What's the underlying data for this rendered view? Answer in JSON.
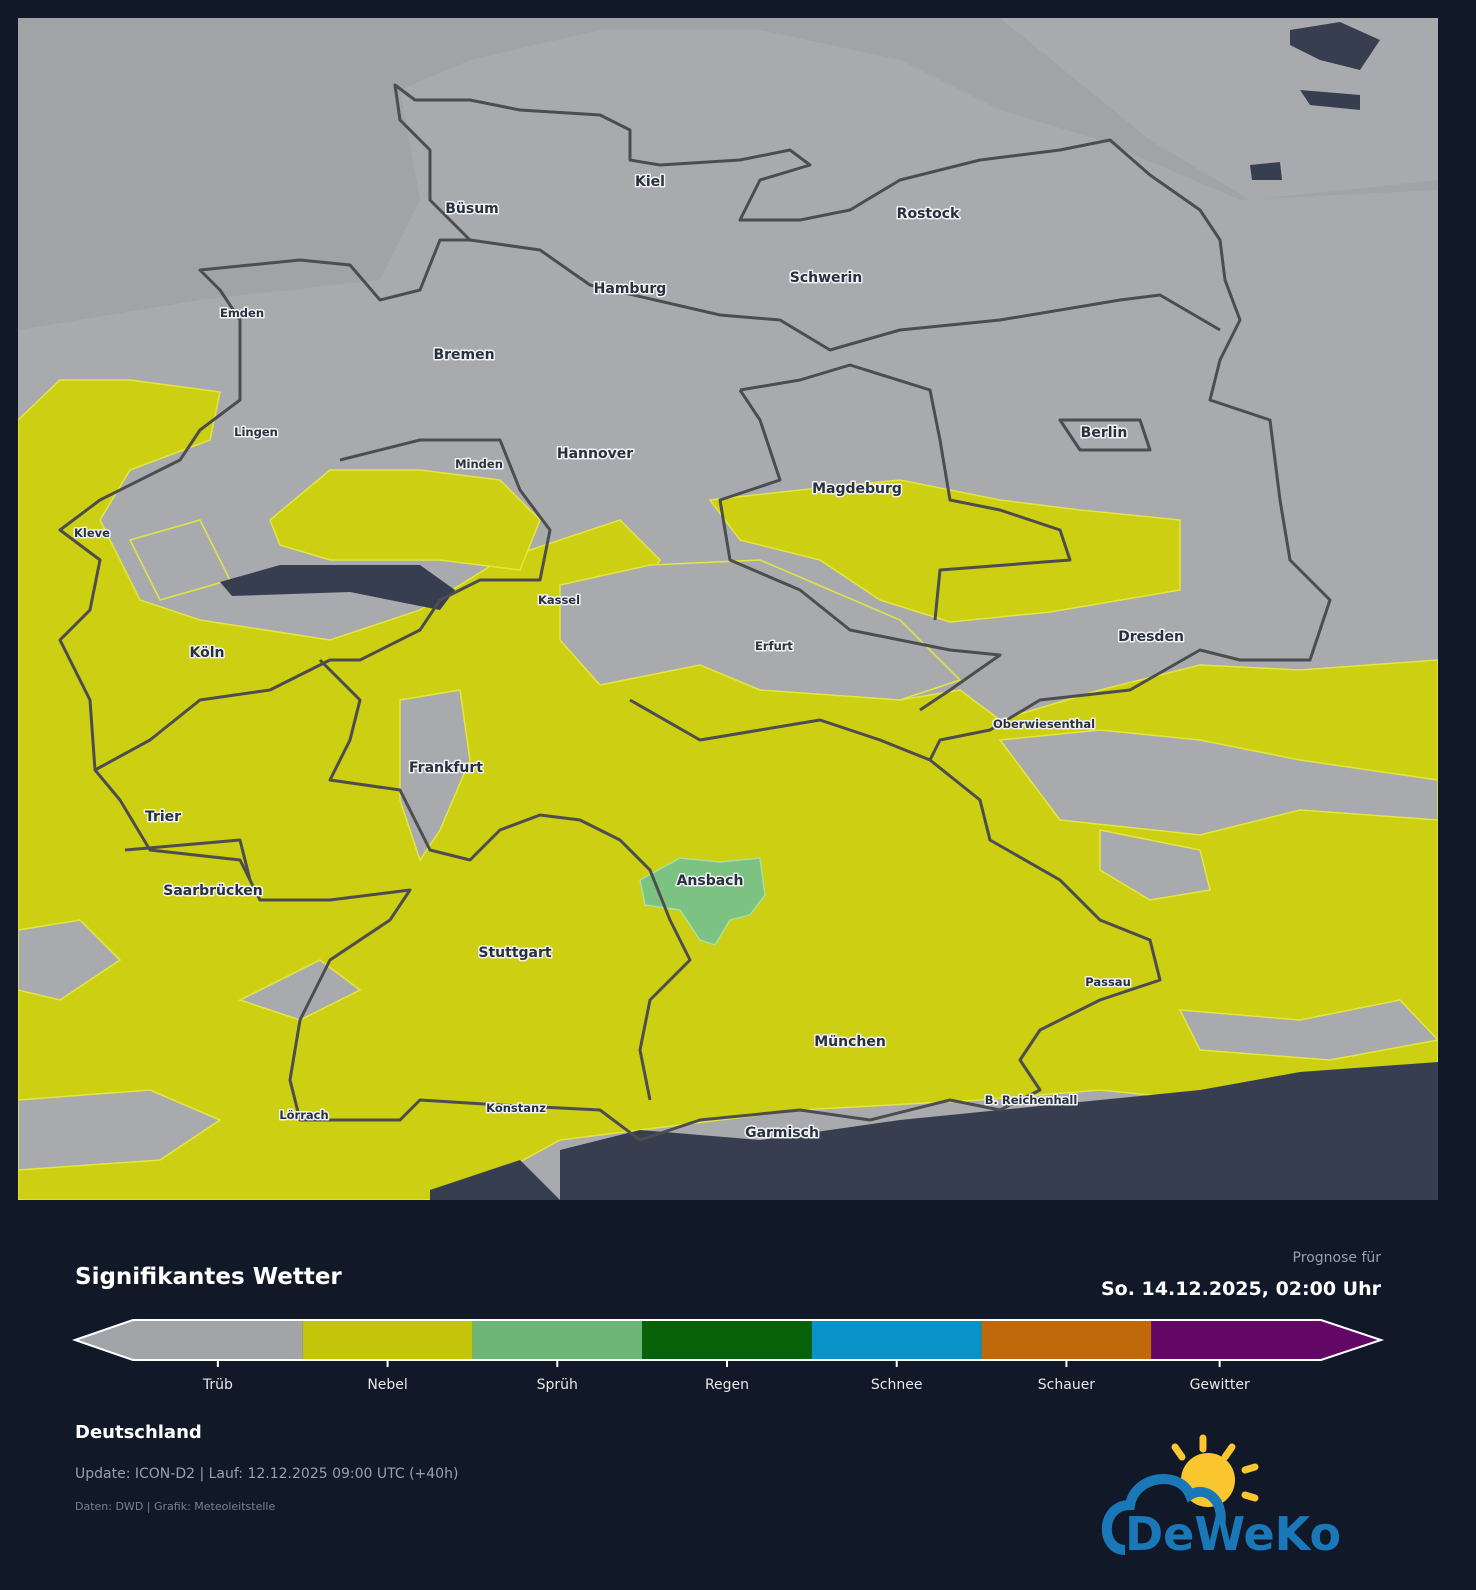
{
  "header": {
    "title": "Signifikantes Wetter",
    "forecast_label": "Prognose für",
    "forecast_datetime": "So. 14.12.2025, 02:00 Uhr"
  },
  "map": {
    "colors": {
      "land": "#a8aaae",
      "sea": "#a2a3a7",
      "nebel": "#cccf12",
      "spruh": "#7bc283",
      "dark": "#363e50",
      "border": "#4d4d4f"
    },
    "cities": [
      {
        "name": "Kiel"
      },
      {
        "name": "Büsum"
      },
      {
        "name": "Rostock"
      },
      {
        "name": "Schwerin"
      },
      {
        "name": "Hamburg"
      },
      {
        "name": "Emden"
      },
      {
        "name": "Bremen"
      },
      {
        "name": "Lingen"
      },
      {
        "name": "Minden"
      },
      {
        "name": "Hannover"
      },
      {
        "name": "Berlin"
      },
      {
        "name": "Magdeburg"
      },
      {
        "name": "Kleve"
      },
      {
        "name": "Kassel"
      },
      {
        "name": "Köln"
      },
      {
        "name": "Erfurt"
      },
      {
        "name": "Dresden"
      },
      {
        "name": "Oberwiesenthal"
      },
      {
        "name": "Frankfurt"
      },
      {
        "name": "Trier"
      },
      {
        "name": "Saarbrücken"
      },
      {
        "name": "Ansbach"
      },
      {
        "name": "Stuttgart"
      },
      {
        "name": "Passau"
      },
      {
        "name": "München"
      },
      {
        "name": "Lörrach"
      },
      {
        "name": "Konstanz"
      },
      {
        "name": "Garmisch"
      },
      {
        "name": "B. Reichenhall"
      }
    ]
  },
  "legend": {
    "categories": [
      {
        "label": "Trüb",
        "color": "#a3a4a8"
      },
      {
        "label": "Nebel",
        "color": "#c4c40a"
      },
      {
        "label": "Sprüh",
        "color": "#6db677"
      },
      {
        "label": "Regen",
        "color": "#08620a"
      },
      {
        "label": "Schnee",
        "color": "#0892c8"
      },
      {
        "label": "Schauer",
        "color": "#c0690a"
      },
      {
        "label": "Gewitter",
        "color": "#620766"
      }
    ]
  },
  "footer": {
    "region": "Deutschland",
    "update": "Update: ICON-D2 | Lauf: 12.12.2025 09:00 UTC (+40h)",
    "credits": "Daten: DWD | Grafik: Meteoleitstelle",
    "logo_text": "DeWeKo"
  }
}
